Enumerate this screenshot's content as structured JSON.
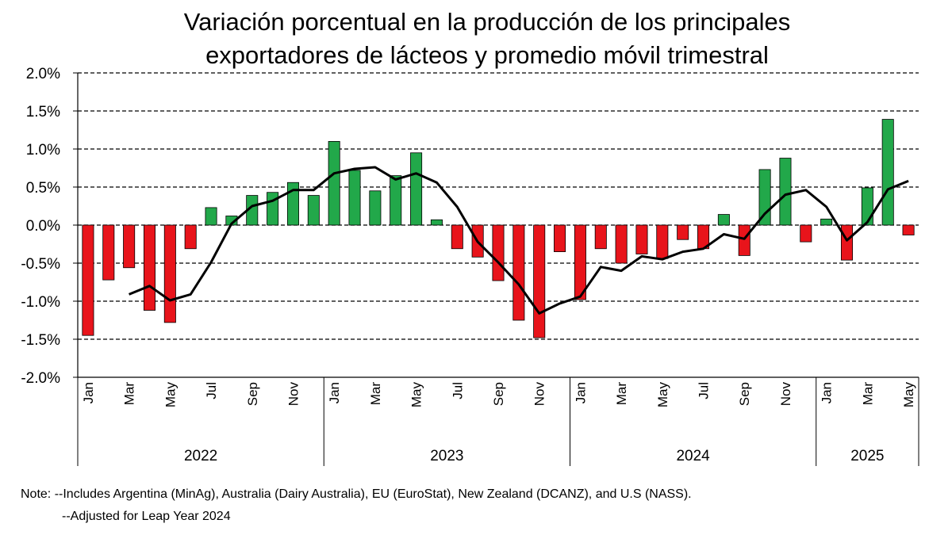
{
  "chart_data": {
    "type": "bar",
    "title": [
      "Variación porcentual en la producción de los principales",
      "exportadores de lácteos y promedio móvil trimestral"
    ],
    "xlabel": "",
    "ylabel": "",
    "ylim": [
      -2.0,
      2.0
    ],
    "y_ticks": [
      "2.0%",
      "1.5%",
      "1.0%",
      "0.5%",
      "0.0%",
      "-0.5%",
      "-1.0%",
      "-1.5%",
      "-2.0%"
    ],
    "y_tick_values": [
      2.0,
      1.5,
      1.0,
      0.5,
      0.0,
      -0.5,
      -1.0,
      -1.5,
      -2.0
    ],
    "grid": "horizontal dashed",
    "categories": [
      "Jan",
      "Feb",
      "Mar",
      "Apr",
      "May",
      "Jun",
      "Jul",
      "Aug",
      "Sep",
      "Oct",
      "Nov",
      "Dec",
      "Jan",
      "Feb",
      "Mar",
      "Apr",
      "May",
      "Jun",
      "Jul",
      "Aug",
      "Sep",
      "Oct",
      "Nov",
      "Dec",
      "Jan",
      "Feb",
      "Mar",
      "Apr",
      "May",
      "Jun",
      "Jul",
      "Aug",
      "Sep",
      "Oct",
      "Nov",
      "Dec",
      "Jan",
      "Feb",
      "Mar",
      "Apr",
      "May"
    ],
    "x_tick_labels": [
      "Jan",
      "",
      "Mar",
      "",
      "May",
      "",
      "Jul",
      "",
      "Sep",
      "",
      "Nov",
      "",
      "Jan",
      "",
      "Mar",
      "",
      "May",
      "",
      "Jul",
      "",
      "Sep",
      "",
      "Nov",
      "",
      "Jan",
      "",
      "Mar",
      "",
      "May",
      "",
      "Jul",
      "",
      "Sep",
      "",
      "Nov",
      "",
      "Jan",
      "",
      "Mar",
      "",
      "May"
    ],
    "year_groups": [
      {
        "label": "2022",
        "count": 12
      },
      {
        "label": "2023",
        "count": 12
      },
      {
        "label": "2024",
        "count": 12
      },
      {
        "label": "2025",
        "count": 5
      }
    ],
    "series": [
      {
        "type": "bar",
        "values": [
          -1.45,
          -0.72,
          -0.56,
          -1.12,
          -1.28,
          -0.31,
          0.23,
          0.12,
          0.39,
          0.43,
          0.56,
          0.39,
          1.1,
          0.72,
          0.45,
          0.65,
          0.95,
          0.07,
          -0.31,
          -0.42,
          -0.73,
          -1.25,
          -1.48,
          -0.35,
          -0.98,
          -0.31,
          -0.5,
          -0.38,
          -0.44,
          -0.19,
          -0.31,
          0.14,
          -0.4,
          0.73,
          0.88,
          -0.22,
          0.08,
          -0.46,
          0.49,
          1.39,
          -0.13
        ],
        "positive_color": "#22a84a",
        "negative_color": "#e8141b"
      },
      {
        "type": "line",
        "values": [
          null,
          null,
          -0.91,
          -0.8,
          -0.99,
          -0.91,
          -0.49,
          0.02,
          0.25,
          0.32,
          0.46,
          0.46,
          0.68,
          0.74,
          0.76,
          0.6,
          0.68,
          0.56,
          0.24,
          -0.22,
          -0.49,
          -0.78,
          -1.16,
          -1.03,
          -0.94,
          -0.55,
          -0.6,
          -0.41,
          -0.45,
          -0.35,
          -0.31,
          -0.12,
          -0.18,
          0.15,
          0.4,
          0.46,
          0.24,
          -0.2,
          0.04,
          0.47,
          0.58
        ],
        "color": "#000000"
      }
    ]
  },
  "notes": [
    "Note: --Includes Argentina (MinAg), Australia (Dairy Australia),  EU (EuroStat), New Zealand (DCANZ), and U.S (NASS).",
    "--Adjusted for Leap Year 2024"
  ]
}
